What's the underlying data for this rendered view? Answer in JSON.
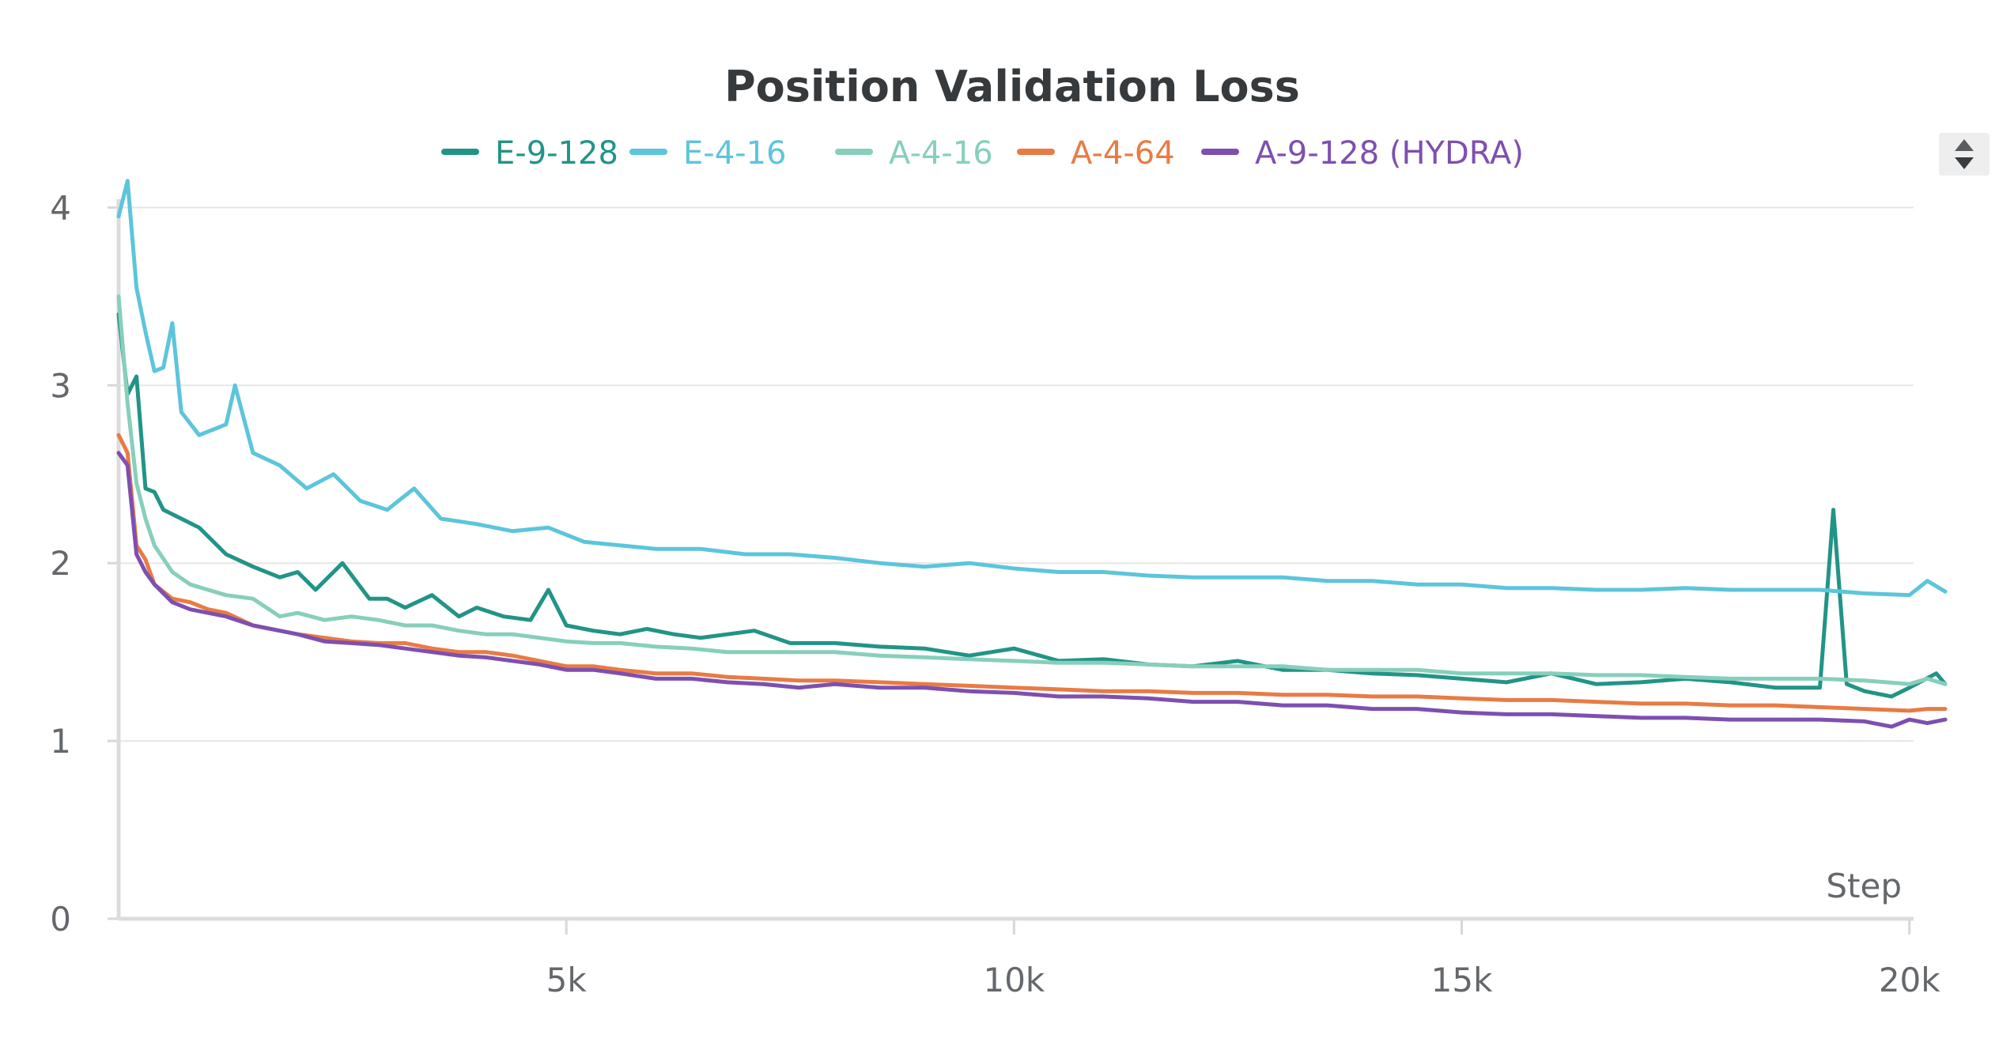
{
  "chart_data": {
    "type": "line",
    "title": "Position Validation Loss",
    "xlabel": "Step",
    "ylabel": "",
    "xlim": [
      0,
      20400
    ],
    "ylim": [
      0,
      4.1
    ],
    "grid": true,
    "legend_position": "top",
    "x_ticks": [
      {
        "value": 5000,
        "label": "5k"
      },
      {
        "value": 10000,
        "label": "10k"
      },
      {
        "value": 15000,
        "label": "15k"
      },
      {
        "value": 20000,
        "label": "20k"
      }
    ],
    "y_ticks": [
      {
        "value": 0,
        "label": "0"
      },
      {
        "value": 1,
        "label": "1"
      },
      {
        "value": 2,
        "label": "2"
      },
      {
        "value": 3,
        "label": "3"
      },
      {
        "value": 4,
        "label": "4"
      }
    ],
    "series": [
      {
        "name": "E-9-128",
        "color": "#229487",
        "x": [
          0,
          100,
          200,
          300,
          400,
          500,
          700,
          900,
          1200,
          1500,
          1800,
          2000,
          2200,
          2500,
          2800,
          3000,
          3200,
          3500,
          3800,
          4000,
          4300,
          4600,
          4800,
          5000,
          5300,
          5600,
          5900,
          6200,
          6500,
          6800,
          7100,
          7500,
          8000,
          8500,
          9000,
          9500,
          10000,
          10500,
          11000,
          11500,
          12000,
          12500,
          13000,
          13500,
          14000,
          14500,
          15000,
          15500,
          16000,
          16500,
          17000,
          17500,
          18000,
          18500,
          19000,
          19150,
          19300,
          19500,
          19800,
          20000,
          20300,
          20400
        ],
        "y": [
          3.4,
          2.95,
          3.05,
          2.42,
          2.4,
          2.3,
          2.25,
          2.2,
          2.05,
          1.98,
          1.92,
          1.95,
          1.85,
          2.0,
          1.8,
          1.8,
          1.75,
          1.82,
          1.7,
          1.75,
          1.7,
          1.68,
          1.85,
          1.65,
          1.62,
          1.6,
          1.63,
          1.6,
          1.58,
          1.6,
          1.62,
          1.55,
          1.55,
          1.53,
          1.52,
          1.48,
          1.52,
          1.45,
          1.46,
          1.43,
          1.42,
          1.45,
          1.4,
          1.4,
          1.38,
          1.37,
          1.35,
          1.33,
          1.38,
          1.32,
          1.33,
          1.35,
          1.33,
          1.3,
          1.3,
          2.3,
          1.32,
          1.28,
          1.25,
          1.3,
          1.38,
          1.32
        ]
      },
      {
        "name": "E-4-16",
        "color": "#5cc5dc",
        "x": [
          0,
          100,
          200,
          300,
          400,
          500,
          600,
          700,
          900,
          1200,
          1300,
          1500,
          1800,
          2100,
          2400,
          2700,
          3000,
          3300,
          3600,
          4000,
          4400,
          4800,
          5200,
          5600,
          6000,
          6500,
          7000,
          7500,
          8000,
          8500,
          9000,
          9500,
          10000,
          10500,
          11000,
          11500,
          12000,
          12500,
          13000,
          13500,
          14000,
          14500,
          15000,
          15500,
          16000,
          16500,
          17000,
          17500,
          18000,
          18500,
          19000,
          19500,
          20000,
          20200,
          20400
        ],
        "y": [
          3.95,
          4.15,
          3.55,
          3.3,
          3.08,
          3.1,
          3.35,
          2.85,
          2.72,
          2.78,
          3.0,
          2.62,
          2.55,
          2.42,
          2.5,
          2.35,
          2.3,
          2.42,
          2.25,
          2.22,
          2.18,
          2.2,
          2.12,
          2.1,
          2.08,
          2.08,
          2.05,
          2.05,
          2.03,
          2.0,
          1.98,
          2.0,
          1.97,
          1.95,
          1.95,
          1.93,
          1.92,
          1.92,
          1.92,
          1.9,
          1.9,
          1.88,
          1.88,
          1.86,
          1.86,
          1.85,
          1.85,
          1.86,
          1.85,
          1.85,
          1.85,
          1.83,
          1.82,
          1.9,
          1.84
        ]
      },
      {
        "name": "A-4-16",
        "color": "#87cfbb",
        "x": [
          0,
          100,
          200,
          300,
          400,
          600,
          800,
          1000,
          1200,
          1500,
          1800,
          2000,
          2300,
          2600,
          2900,
          3200,
          3500,
          3800,
          4100,
          4400,
          4700,
          5000,
          5300,
          5600,
          6000,
          6400,
          6800,
          7200,
          7600,
          8000,
          8500,
          9000,
          9500,
          10000,
          10500,
          11000,
          11500,
          12000,
          12500,
          13000,
          13500,
          14000,
          14500,
          15000,
          15500,
          16000,
          16500,
          17000,
          17500,
          18000,
          18500,
          19000,
          19500,
          20000,
          20200,
          20400
        ],
        "y": [
          3.5,
          2.9,
          2.45,
          2.25,
          2.1,
          1.95,
          1.88,
          1.85,
          1.82,
          1.8,
          1.7,
          1.72,
          1.68,
          1.7,
          1.68,
          1.65,
          1.65,
          1.62,
          1.6,
          1.6,
          1.58,
          1.56,
          1.55,
          1.55,
          1.53,
          1.52,
          1.5,
          1.5,
          1.5,
          1.5,
          1.48,
          1.47,
          1.46,
          1.45,
          1.44,
          1.44,
          1.43,
          1.42,
          1.42,
          1.42,
          1.4,
          1.4,
          1.4,
          1.38,
          1.38,
          1.38,
          1.37,
          1.37,
          1.36,
          1.35,
          1.35,
          1.35,
          1.34,
          1.32,
          1.35,
          1.32
        ]
      },
      {
        "name": "A-4-64",
        "color": "#e87b44",
        "x": [
          0,
          100,
          200,
          300,
          400,
          600,
          800,
          1000,
          1200,
          1500,
          1800,
          2000,
          2300,
          2600,
          2900,
          3200,
          3500,
          3800,
          4100,
          4400,
          4700,
          5000,
          5300,
          5600,
          6000,
          6400,
          6800,
          7200,
          7600,
          8000,
          8500,
          9000,
          9500,
          10000,
          10500,
          11000,
          11500,
          12000,
          12500,
          13000,
          13500,
          14000,
          14500,
          15000,
          15500,
          16000,
          16500,
          17000,
          17500,
          18000,
          18500,
          19000,
          19500,
          20000,
          20200,
          20400
        ],
        "y": [
          2.72,
          2.62,
          2.1,
          2.02,
          1.88,
          1.8,
          1.78,
          1.74,
          1.72,
          1.65,
          1.62,
          1.6,
          1.58,
          1.56,
          1.55,
          1.55,
          1.52,
          1.5,
          1.5,
          1.48,
          1.45,
          1.42,
          1.42,
          1.4,
          1.38,
          1.38,
          1.36,
          1.35,
          1.34,
          1.34,
          1.33,
          1.32,
          1.31,
          1.3,
          1.29,
          1.28,
          1.28,
          1.27,
          1.27,
          1.26,
          1.26,
          1.25,
          1.25,
          1.24,
          1.23,
          1.23,
          1.22,
          1.21,
          1.21,
          1.2,
          1.2,
          1.19,
          1.18,
          1.17,
          1.18,
          1.18
        ]
      },
      {
        "name": "A-9-128 (HYDRA)",
        "color": "#7e4fb0",
        "x": [
          0,
          100,
          200,
          300,
          400,
          600,
          800,
          1000,
          1200,
          1500,
          1800,
          2000,
          2300,
          2600,
          2900,
          3200,
          3500,
          3800,
          4100,
          4400,
          4700,
          5000,
          5300,
          5600,
          6000,
          6400,
          6800,
          7200,
          7600,
          8000,
          8500,
          9000,
          9500,
          10000,
          10500,
          11000,
          11500,
          12000,
          12500,
          13000,
          13500,
          14000,
          14500,
          15000,
          15500,
          16000,
          16500,
          17000,
          17500,
          18000,
          18500,
          19000,
          19500,
          19800,
          20000,
          20200,
          20400
        ],
        "y": [
          2.62,
          2.55,
          2.05,
          1.95,
          1.88,
          1.78,
          1.74,
          1.72,
          1.7,
          1.65,
          1.62,
          1.6,
          1.56,
          1.55,
          1.54,
          1.52,
          1.5,
          1.48,
          1.47,
          1.45,
          1.43,
          1.4,
          1.4,
          1.38,
          1.35,
          1.35,
          1.33,
          1.32,
          1.3,
          1.32,
          1.3,
          1.3,
          1.28,
          1.27,
          1.25,
          1.25,
          1.24,
          1.22,
          1.22,
          1.2,
          1.2,
          1.18,
          1.18,
          1.16,
          1.15,
          1.15,
          1.14,
          1.13,
          1.13,
          1.12,
          1.12,
          1.12,
          1.11,
          1.08,
          1.12,
          1.1,
          1.12
        ]
      }
    ]
  },
  "legend_scroll": {
    "up_icon": "triangle-up-icon",
    "down_icon": "triangle-down-icon"
  }
}
